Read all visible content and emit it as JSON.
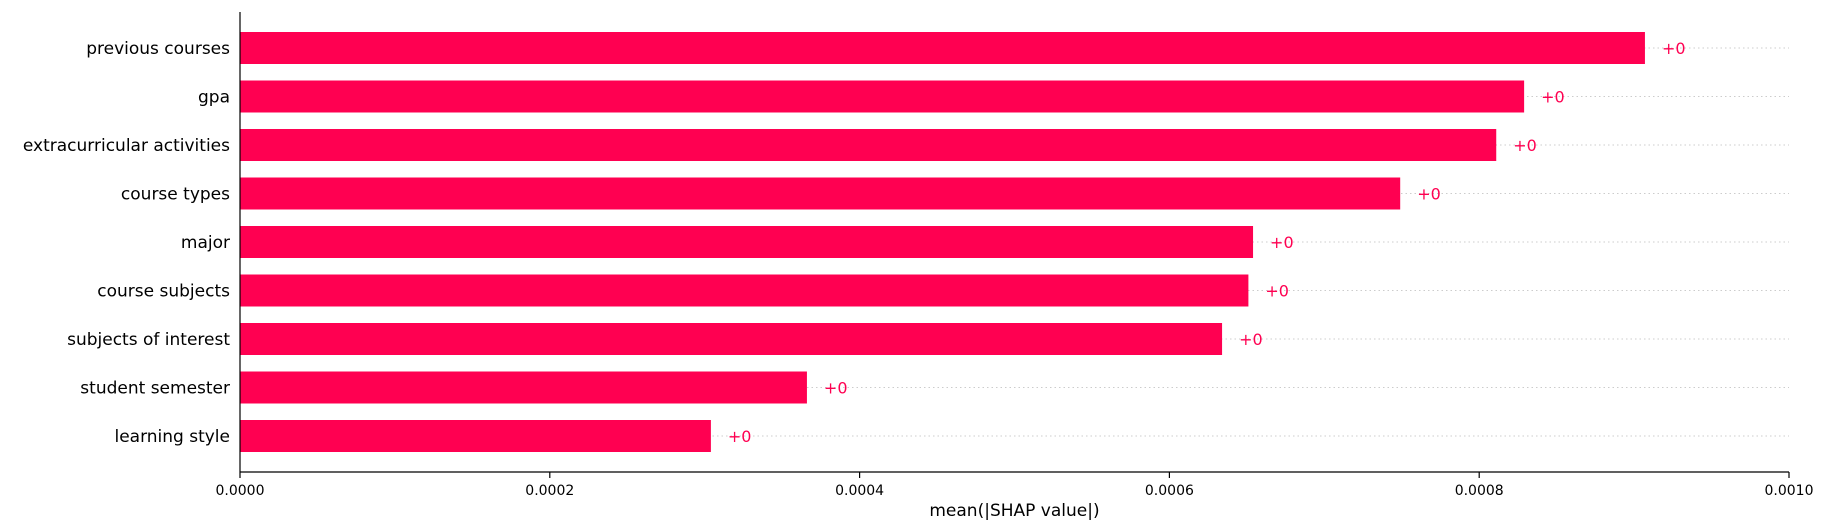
{
  "chart_data": {
    "type": "bar",
    "orientation": "horizontal",
    "categories": [
      "previous courses",
      "gpa",
      "extracurricular activities",
      "course types",
      "major",
      "course subjects",
      "subjects of interest",
      "student semester",
      "learning style"
    ],
    "values": [
      0.000907,
      0.000829,
      0.000811,
      0.000749,
      0.000654,
      0.000651,
      0.000634,
      0.000366,
      0.000304
    ],
    "data_labels": [
      "+0",
      "+0",
      "+0",
      "+0",
      "+0",
      "+0",
      "+0",
      "+0",
      "+0"
    ],
    "xlabel": "mean(|SHAP value|)",
    "ylabel": "",
    "xlim": [
      0,
      0.001
    ],
    "x_ticks": [
      0,
      0.0002,
      0.0004,
      0.0006,
      0.0008,
      0.001
    ],
    "x_tick_labels": [
      "0.0000",
      "0.0002",
      "0.0004",
      "0.0006",
      "0.0008",
      "0.0010"
    ],
    "grid": "dotted horizontal guides per bar",
    "legend": "none",
    "bar_color": "#ff0051",
    "label_color": "#ff0051"
  }
}
